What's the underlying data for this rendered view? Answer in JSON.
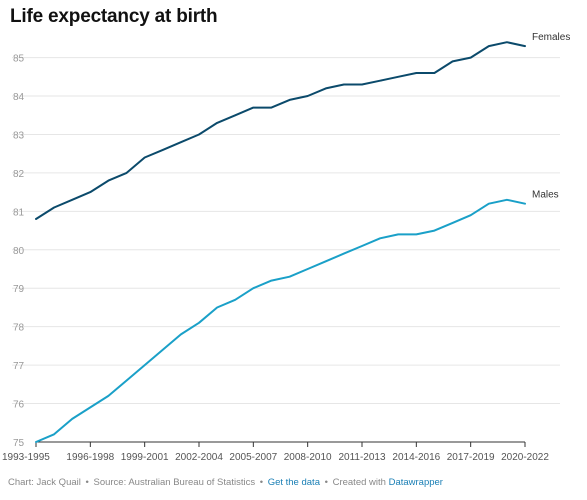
{
  "chart_data": {
    "type": "line",
    "title": "Life expectancy at birth",
    "categories": [
      "1993-1995",
      "1994-1996",
      "1995-1997",
      "1996-1998",
      "1997-1999",
      "1998-2000",
      "1999-2001",
      "2000-2002",
      "2001-2003",
      "2002-2004",
      "2003-2005",
      "2004-2006",
      "2005-2007",
      "2006-2008",
      "2007-2009",
      "2008-2010",
      "2009-2011",
      "2010-2012",
      "2011-2013",
      "2012-2014",
      "2013-2015",
      "2014-2016",
      "2015-2017",
      "2016-2018",
      "2017-2019",
      "2018-2020",
      "2019-2021",
      "2020-2022"
    ],
    "x_tick_labels": [
      "1993-1995",
      "1996-1998",
      "1999-2001",
      "2002-2004",
      "2005-2007",
      "2008-2010",
      "2011-2013",
      "2014-2016",
      "2017-2019",
      "2020-2022"
    ],
    "series": [
      {
        "name": "Females",
        "color": "#0b4a6b",
        "values": [
          80.8,
          81.1,
          81.3,
          81.5,
          81.8,
          82.0,
          82.4,
          82.6,
          82.8,
          83.0,
          83.3,
          83.5,
          83.7,
          83.7,
          83.9,
          84.0,
          84.2,
          84.3,
          84.3,
          84.4,
          84.5,
          84.6,
          84.6,
          84.9,
          85.0,
          85.3,
          85.4,
          85.3
        ]
      },
      {
        "name": "Males",
        "color": "#1aa0c8",
        "values": [
          75.0,
          75.2,
          75.6,
          75.9,
          76.2,
          76.6,
          77.0,
          77.4,
          77.8,
          78.1,
          78.5,
          78.7,
          79.0,
          79.2,
          79.3,
          79.5,
          79.7,
          79.9,
          80.1,
          80.3,
          80.4,
          80.4,
          80.5,
          80.7,
          80.9,
          81.2,
          81.3,
          81.2
        ]
      }
    ],
    "ylim": [
      75,
      85.5
    ],
    "y_ticks": [
      75,
      76,
      77,
      78,
      79,
      80,
      81,
      82,
      83,
      84,
      85
    ],
    "grid": true,
    "legend": "direct labels at line ends (right)",
    "xlabel": "",
    "ylabel": ""
  },
  "footer": {
    "chart_by": "Chart: Jack Quail",
    "source": "Source: Australian Bureau of Statistics",
    "get_data": "Get the data",
    "created_with": "Created with",
    "tool": "Datawrapper",
    "separator": "•"
  }
}
